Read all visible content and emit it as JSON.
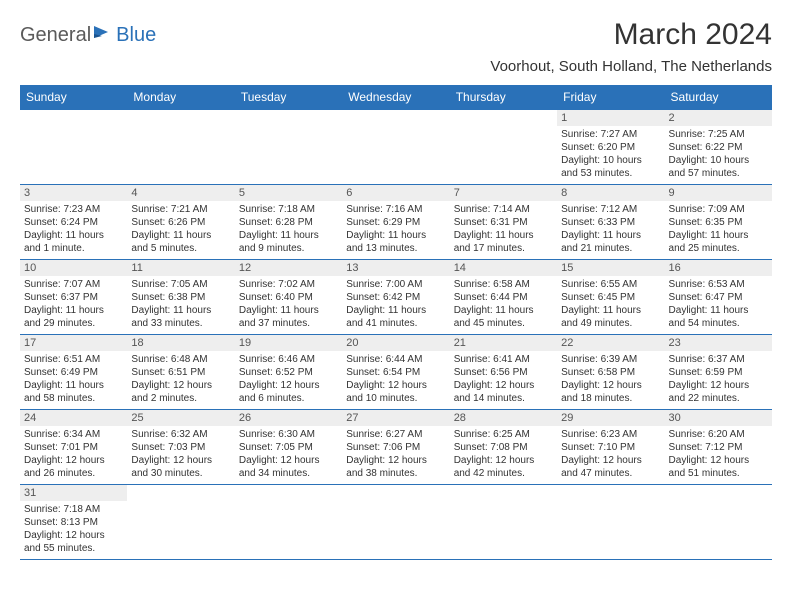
{
  "logo": {
    "text1": "General",
    "text2": "Blue"
  },
  "title": "March 2024",
  "location": "Voorhout, South Holland, The Netherlands",
  "colors": {
    "header_bg": "#2a71b8",
    "header_text": "#ffffff",
    "daynum_bg": "#eeeeee",
    "border": "#2a71b8",
    "logo_gray": "#5a5a5a",
    "logo_blue": "#2a71b8"
  },
  "weekdays": [
    "Sunday",
    "Monday",
    "Tuesday",
    "Wednesday",
    "Thursday",
    "Friday",
    "Saturday"
  ],
  "weeks": [
    [
      null,
      null,
      null,
      null,
      null,
      {
        "n": "1",
        "sr": "Sunrise: 7:27 AM",
        "ss": "Sunset: 6:20 PM",
        "d1": "Daylight: 10 hours",
        "d2": "and 53 minutes."
      },
      {
        "n": "2",
        "sr": "Sunrise: 7:25 AM",
        "ss": "Sunset: 6:22 PM",
        "d1": "Daylight: 10 hours",
        "d2": "and 57 minutes."
      }
    ],
    [
      {
        "n": "3",
        "sr": "Sunrise: 7:23 AM",
        "ss": "Sunset: 6:24 PM",
        "d1": "Daylight: 11 hours",
        "d2": "and 1 minute."
      },
      {
        "n": "4",
        "sr": "Sunrise: 7:21 AM",
        "ss": "Sunset: 6:26 PM",
        "d1": "Daylight: 11 hours",
        "d2": "and 5 minutes."
      },
      {
        "n": "5",
        "sr": "Sunrise: 7:18 AM",
        "ss": "Sunset: 6:28 PM",
        "d1": "Daylight: 11 hours",
        "d2": "and 9 minutes."
      },
      {
        "n": "6",
        "sr": "Sunrise: 7:16 AM",
        "ss": "Sunset: 6:29 PM",
        "d1": "Daylight: 11 hours",
        "d2": "and 13 minutes."
      },
      {
        "n": "7",
        "sr": "Sunrise: 7:14 AM",
        "ss": "Sunset: 6:31 PM",
        "d1": "Daylight: 11 hours",
        "d2": "and 17 minutes."
      },
      {
        "n": "8",
        "sr": "Sunrise: 7:12 AM",
        "ss": "Sunset: 6:33 PM",
        "d1": "Daylight: 11 hours",
        "d2": "and 21 minutes."
      },
      {
        "n": "9",
        "sr": "Sunrise: 7:09 AM",
        "ss": "Sunset: 6:35 PM",
        "d1": "Daylight: 11 hours",
        "d2": "and 25 minutes."
      }
    ],
    [
      {
        "n": "10",
        "sr": "Sunrise: 7:07 AM",
        "ss": "Sunset: 6:37 PM",
        "d1": "Daylight: 11 hours",
        "d2": "and 29 minutes."
      },
      {
        "n": "11",
        "sr": "Sunrise: 7:05 AM",
        "ss": "Sunset: 6:38 PM",
        "d1": "Daylight: 11 hours",
        "d2": "and 33 minutes."
      },
      {
        "n": "12",
        "sr": "Sunrise: 7:02 AM",
        "ss": "Sunset: 6:40 PM",
        "d1": "Daylight: 11 hours",
        "d2": "and 37 minutes."
      },
      {
        "n": "13",
        "sr": "Sunrise: 7:00 AM",
        "ss": "Sunset: 6:42 PM",
        "d1": "Daylight: 11 hours",
        "d2": "and 41 minutes."
      },
      {
        "n": "14",
        "sr": "Sunrise: 6:58 AM",
        "ss": "Sunset: 6:44 PM",
        "d1": "Daylight: 11 hours",
        "d2": "and 45 minutes."
      },
      {
        "n": "15",
        "sr": "Sunrise: 6:55 AM",
        "ss": "Sunset: 6:45 PM",
        "d1": "Daylight: 11 hours",
        "d2": "and 49 minutes."
      },
      {
        "n": "16",
        "sr": "Sunrise: 6:53 AM",
        "ss": "Sunset: 6:47 PM",
        "d1": "Daylight: 11 hours",
        "d2": "and 54 minutes."
      }
    ],
    [
      {
        "n": "17",
        "sr": "Sunrise: 6:51 AM",
        "ss": "Sunset: 6:49 PM",
        "d1": "Daylight: 11 hours",
        "d2": "and 58 minutes."
      },
      {
        "n": "18",
        "sr": "Sunrise: 6:48 AM",
        "ss": "Sunset: 6:51 PM",
        "d1": "Daylight: 12 hours",
        "d2": "and 2 minutes."
      },
      {
        "n": "19",
        "sr": "Sunrise: 6:46 AM",
        "ss": "Sunset: 6:52 PM",
        "d1": "Daylight: 12 hours",
        "d2": "and 6 minutes."
      },
      {
        "n": "20",
        "sr": "Sunrise: 6:44 AM",
        "ss": "Sunset: 6:54 PM",
        "d1": "Daylight: 12 hours",
        "d2": "and 10 minutes."
      },
      {
        "n": "21",
        "sr": "Sunrise: 6:41 AM",
        "ss": "Sunset: 6:56 PM",
        "d1": "Daylight: 12 hours",
        "d2": "and 14 minutes."
      },
      {
        "n": "22",
        "sr": "Sunrise: 6:39 AM",
        "ss": "Sunset: 6:58 PM",
        "d1": "Daylight: 12 hours",
        "d2": "and 18 minutes."
      },
      {
        "n": "23",
        "sr": "Sunrise: 6:37 AM",
        "ss": "Sunset: 6:59 PM",
        "d1": "Daylight: 12 hours",
        "d2": "and 22 minutes."
      }
    ],
    [
      {
        "n": "24",
        "sr": "Sunrise: 6:34 AM",
        "ss": "Sunset: 7:01 PM",
        "d1": "Daylight: 12 hours",
        "d2": "and 26 minutes."
      },
      {
        "n": "25",
        "sr": "Sunrise: 6:32 AM",
        "ss": "Sunset: 7:03 PM",
        "d1": "Daylight: 12 hours",
        "d2": "and 30 minutes."
      },
      {
        "n": "26",
        "sr": "Sunrise: 6:30 AM",
        "ss": "Sunset: 7:05 PM",
        "d1": "Daylight: 12 hours",
        "d2": "and 34 minutes."
      },
      {
        "n": "27",
        "sr": "Sunrise: 6:27 AM",
        "ss": "Sunset: 7:06 PM",
        "d1": "Daylight: 12 hours",
        "d2": "and 38 minutes."
      },
      {
        "n": "28",
        "sr": "Sunrise: 6:25 AM",
        "ss": "Sunset: 7:08 PM",
        "d1": "Daylight: 12 hours",
        "d2": "and 42 minutes."
      },
      {
        "n": "29",
        "sr": "Sunrise: 6:23 AM",
        "ss": "Sunset: 7:10 PM",
        "d1": "Daylight: 12 hours",
        "d2": "and 47 minutes."
      },
      {
        "n": "30",
        "sr": "Sunrise: 6:20 AM",
        "ss": "Sunset: 7:12 PM",
        "d1": "Daylight: 12 hours",
        "d2": "and 51 minutes."
      }
    ],
    [
      {
        "n": "31",
        "sr": "Sunrise: 7:18 AM",
        "ss": "Sunset: 8:13 PM",
        "d1": "Daylight: 12 hours",
        "d2": "and 55 minutes."
      },
      null,
      null,
      null,
      null,
      null,
      null
    ]
  ]
}
